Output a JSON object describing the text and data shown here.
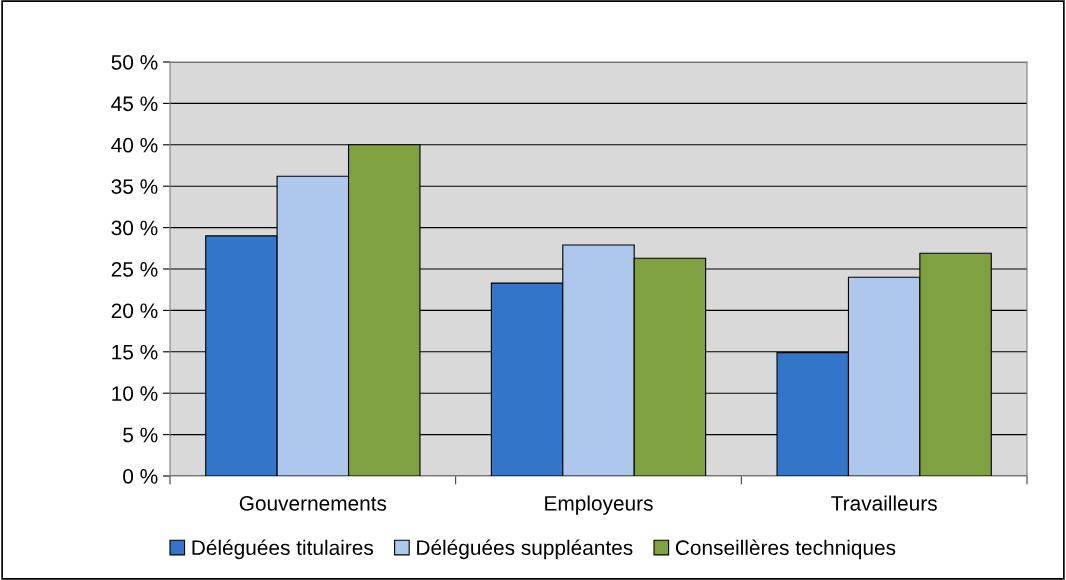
{
  "chart_data": {
    "type": "bar",
    "categories": [
      "Gouvernements",
      "Employeurs",
      "Travailleurs"
    ],
    "series": [
      {
        "name": "Déléguées titulaires",
        "color": "#3375c8",
        "values": [
          29.0,
          23.3,
          14.9
        ]
      },
      {
        "name": "Déléguées suppléantes",
        "color": "#adc8ec",
        "values": [
          36.2,
          27.9,
          24.0
        ]
      },
      {
        "name": "Conseillères techniques",
        "color": "#7fa142",
        "values": [
          40.0,
          26.3,
          26.9
        ]
      }
    ],
    "ylim": [
      0,
      50
    ],
    "yticks": [
      {
        "value": 0,
        "label": "0 %"
      },
      {
        "value": 5,
        "label": "5 %"
      },
      {
        "value": 10,
        "label": "10 %"
      },
      {
        "value": 15,
        "label": "15 %"
      },
      {
        "value": 20,
        "label": "20 %"
      },
      {
        "value": 25,
        "label": "25 %"
      },
      {
        "value": 30,
        "label": "30 %"
      },
      {
        "value": 35,
        "label": "35 %"
      },
      {
        "value": 40,
        "label": "40 %"
      },
      {
        "value": 45,
        "label": "45 %"
      },
      {
        "value": 50,
        "label": "50 %"
      }
    ],
    "grid": "y",
    "legend": "bottom"
  }
}
